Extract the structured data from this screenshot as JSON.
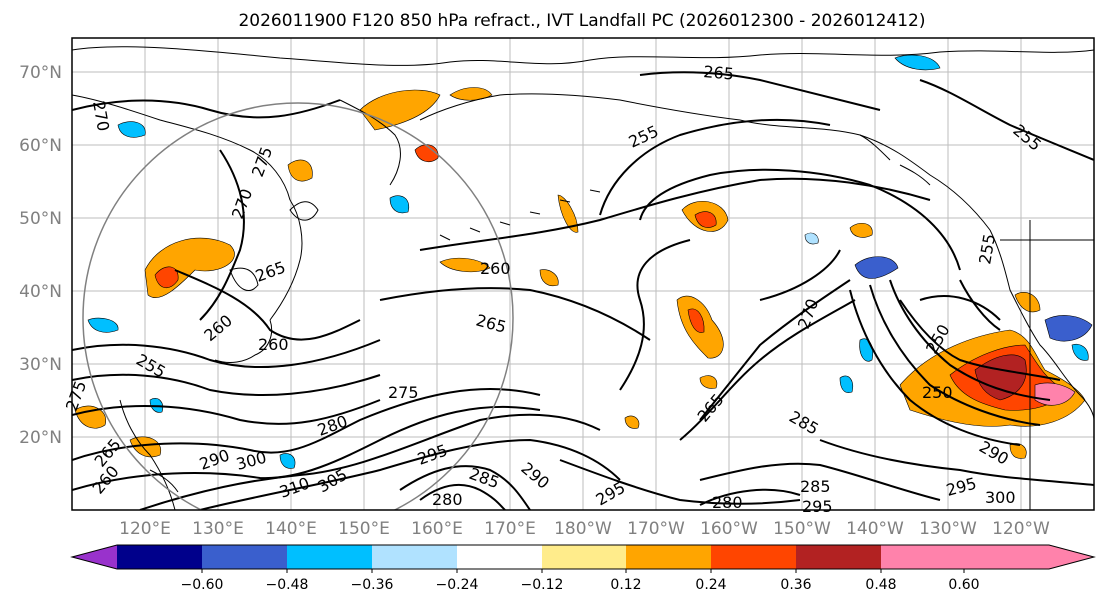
{
  "title": "2026011900 F120 850 hPa refract., IVT Landfall PC (2026012300 - 2026012412)",
  "latitude_labels": [
    "70°N",
    "60°N",
    "50°N",
    "40°N",
    "30°N",
    "20°N"
  ],
  "longitude_labels": [
    "120°E",
    "130°E",
    "140°E",
    "150°E",
    "160°E",
    "170°E",
    "180°W",
    "170°W",
    "160°W",
    "150°W",
    "140°W",
    "130°W",
    "120°W"
  ],
  "colorbar": {
    "colors": [
      "#9932CC",
      "#00008B",
      "#3A5FCD",
      "#00BFFF",
      "#B0E2FF",
      "#FFFFFF",
      "#FFEC8B",
      "#FFA500",
      "#FF4500",
      "#B22222",
      "#FF82AB"
    ],
    "ticks": [
      "−0.60",
      "−0.48",
      "−0.36",
      "−0.24",
      "−0.12",
      "0.12",
      "0.24",
      "0.36",
      "0.48",
      "0.60"
    ]
  },
  "contour_labels": [
    "270",
    "275",
    "270",
    "265",
    "260",
    "255",
    "260",
    "265",
    "255",
    "275",
    "280",
    "290",
    "300",
    "310",
    "305",
    "295",
    "285",
    "280",
    "260",
    "255",
    "265",
    "270",
    "265",
    "285",
    "290",
    "295",
    "280",
    "285",
    "295",
    "250",
    "250",
    "290",
    "295",
    "300",
    "255",
    "265",
    "275",
    "260"
  ]
}
